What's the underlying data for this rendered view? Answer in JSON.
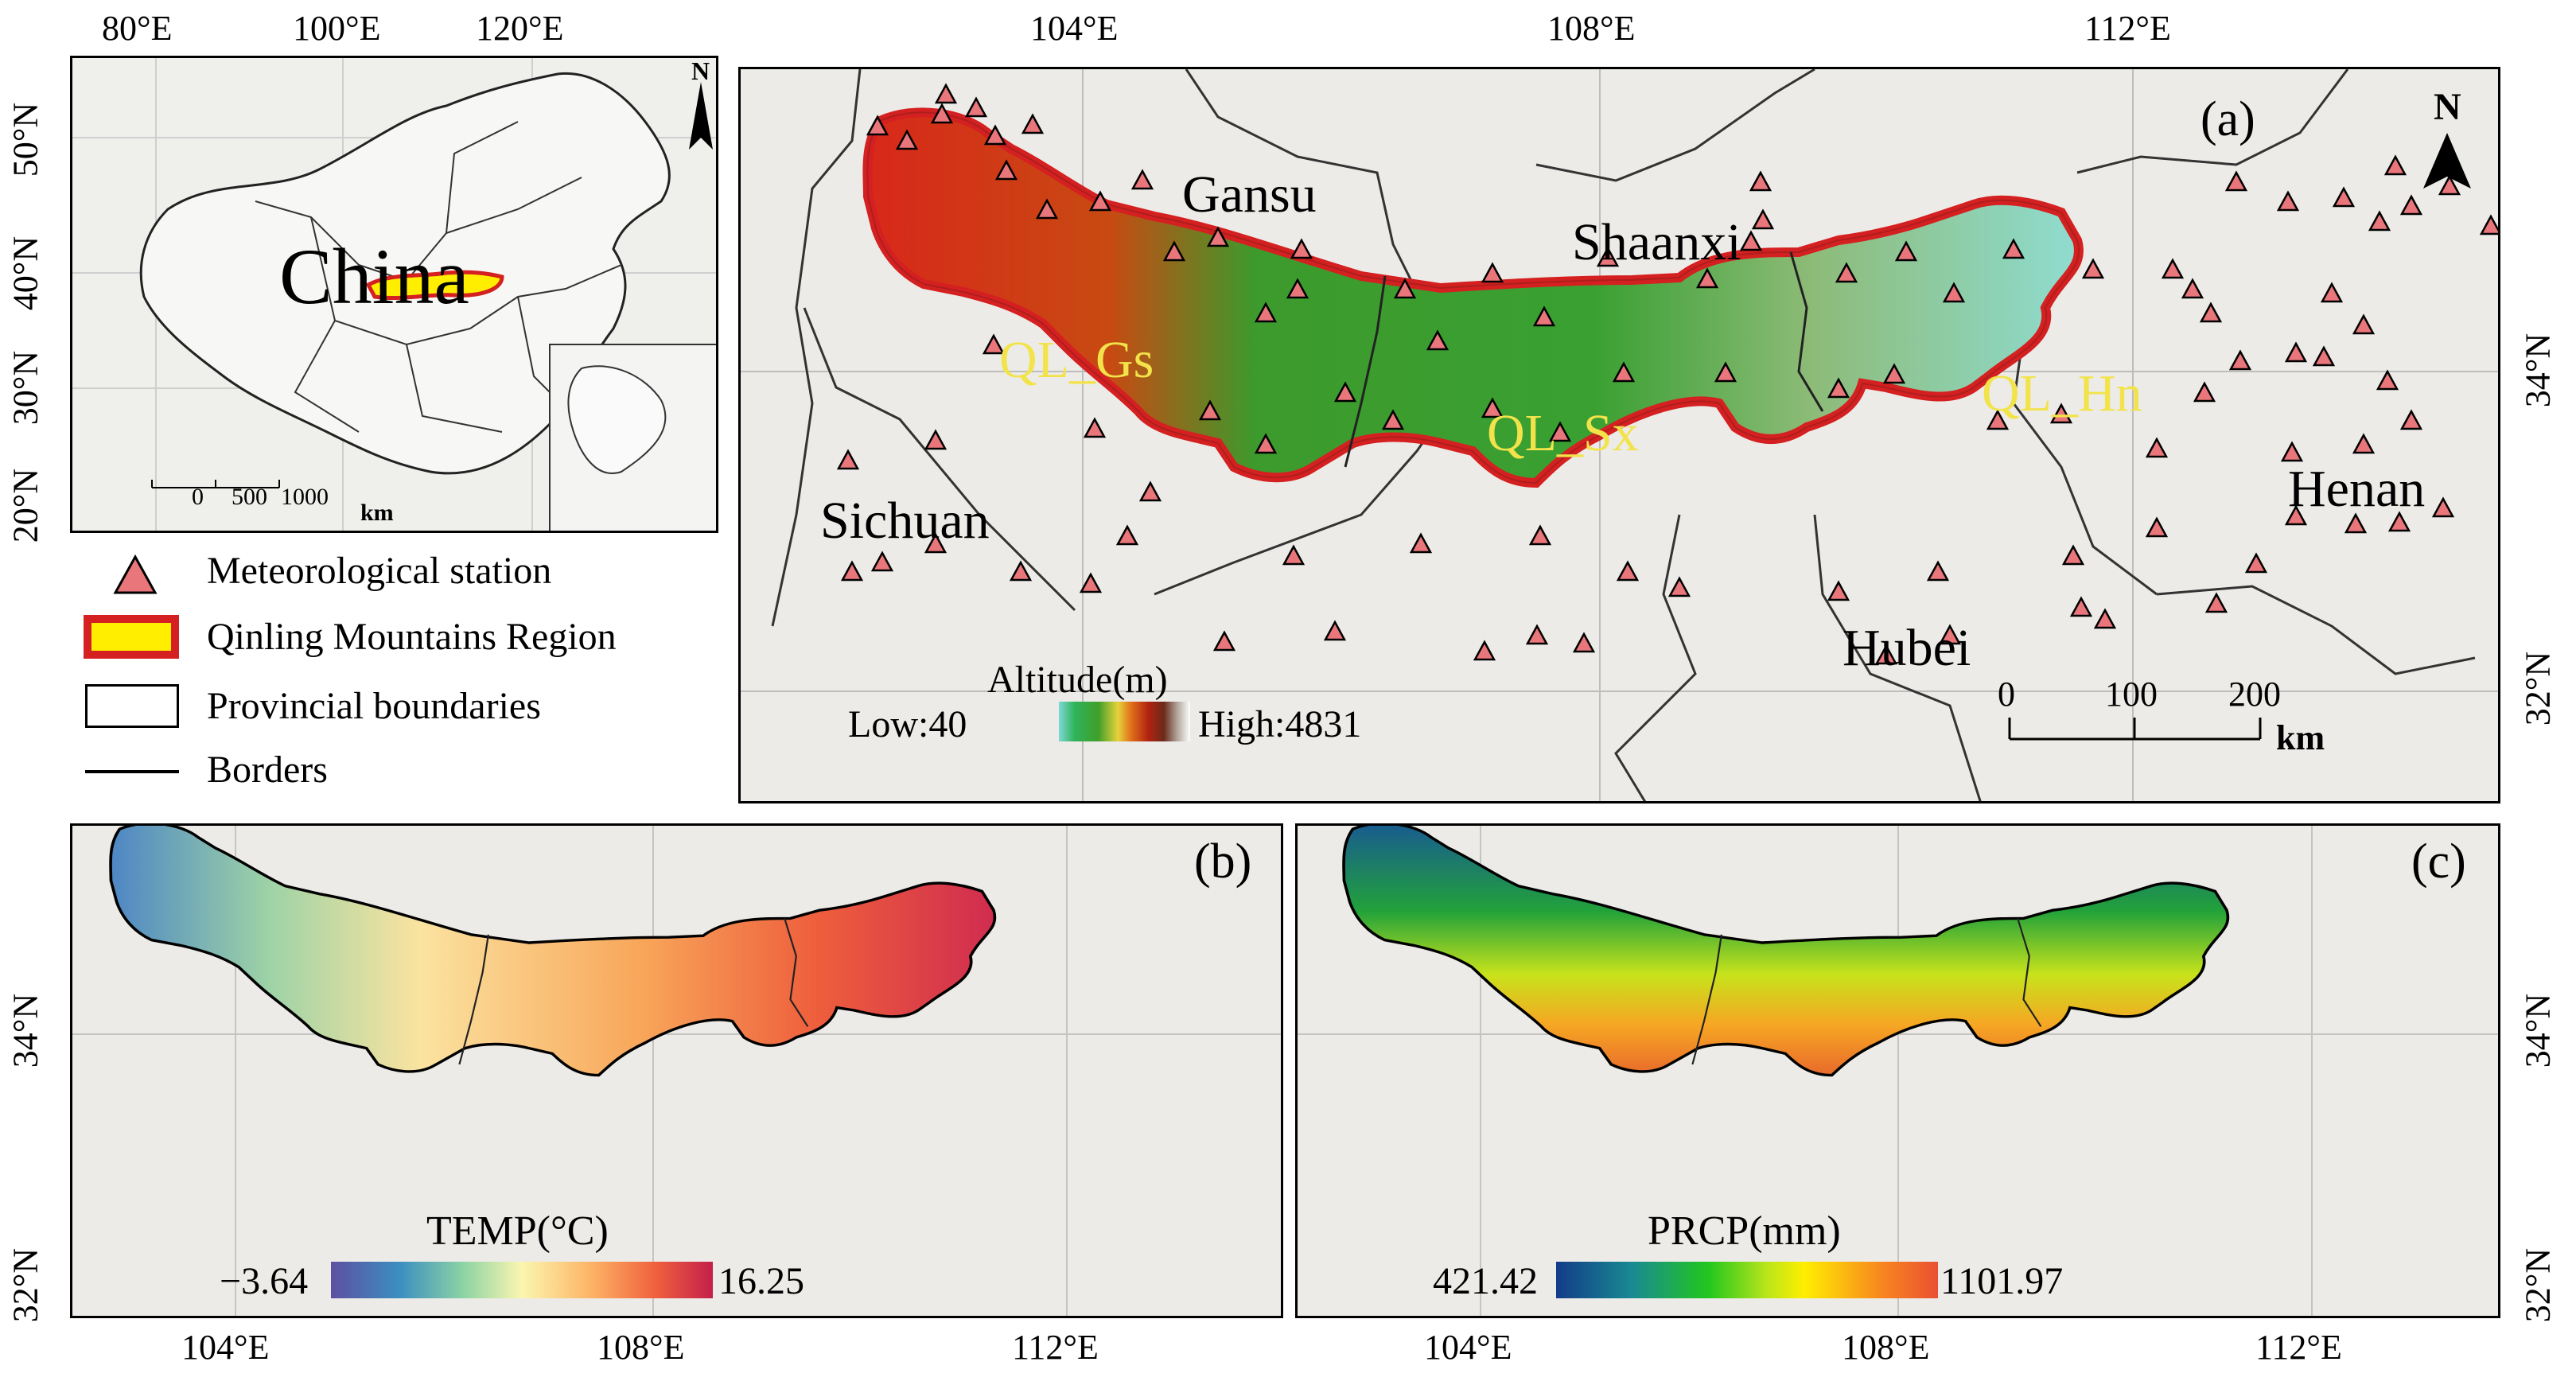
{
  "colors": {
    "region_outline": "#d42020",
    "region_fill_inset": "#ffee00",
    "station_fill": "#e9767a",
    "sub_label": "#f2e34a",
    "province_line": "#222222"
  },
  "inset": {
    "top_ticks": [
      "80°E",
      "100°E",
      "120°E"
    ],
    "left_ticks": [
      "50°N",
      "40°N",
      "30°N",
      "20°N"
    ],
    "country_label": "China",
    "north_label": "N",
    "scale": {
      "ticks": [
        "0",
        "500",
        "1000"
      ],
      "unit": "km"
    }
  },
  "legend": {
    "items": [
      {
        "icon": "triangle-icon",
        "label": "Meteorological station"
      },
      {
        "icon": "region-swatch-icon",
        "label": "Qinling Mountains Region"
      },
      {
        "icon": "boundary-swatch-icon",
        "label": "Provincial boundaries"
      },
      {
        "icon": "border-line-icon",
        "label": "Borders"
      }
    ]
  },
  "panel_a": {
    "tag": "(a)",
    "north_label": "N",
    "top_ticks": [
      "104°E",
      "108°E",
      "112°E"
    ],
    "right_ticks": [
      "34°N",
      "32°N"
    ],
    "provinces": [
      "Gansu",
      "Shaanxi",
      "Sichuan",
      "Henan",
      "Hubei"
    ],
    "subregions": [
      "QL_Gs",
      "QL_Sx",
      "QL_Hn"
    ],
    "altitude_legend": {
      "title": "Altitude(m)",
      "low": "Low:40",
      "high": "High:4831"
    },
    "scale": {
      "ticks": [
        "0",
        "100",
        "200"
      ],
      "unit": "km"
    }
  },
  "panel_b": {
    "tag": "(b)",
    "legend": {
      "title": "TEMP(°C)",
      "min": "−3.64",
      "max": "16.25"
    },
    "bottom_ticks": [
      "104°E",
      "108°E",
      "112°E"
    ],
    "left_ticks": [
      "34°N",
      "32°N"
    ]
  },
  "panel_c": {
    "tag": "(c)",
    "legend": {
      "title": "PRCP(mm)",
      "min": "421.42",
      "max": "1101.97"
    },
    "bottom_ticks": [
      "104°E",
      "108°E",
      "112°E"
    ],
    "right_ticks": [
      "34°N",
      "32°N"
    ]
  }
}
